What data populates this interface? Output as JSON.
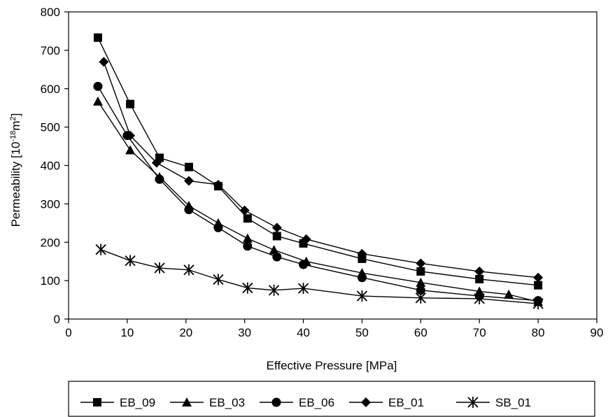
{
  "chart_data": {
    "type": "line",
    "xlabel": "Effective Pressure [MPa]",
    "ylabel_main": "Permeability [10",
    "ylabel_exp1": "-18",
    "ylabel_mid": "m",
    "ylabel_exp2": "2",
    "ylabel_end": "]",
    "xlim": [
      0,
      90
    ],
    "ylim": [
      0,
      800
    ],
    "xticks": [
      0,
      10,
      20,
      30,
      40,
      50,
      60,
      70,
      80,
      90
    ],
    "yticks": [
      0,
      100,
      200,
      300,
      400,
      500,
      600,
      700,
      800
    ],
    "grid": false,
    "legend_position": "bottom",
    "series": [
      {
        "name": "EB_09",
        "marker": "square",
        "x": [
          5,
          10.5,
          15.5,
          20.5,
          25.5,
          30.5,
          35.5,
          40,
          50,
          60,
          70,
          80
        ],
        "y": [
          733,
          560,
          420,
          396,
          346,
          262,
          216,
          197,
          157,
          124,
          104,
          88
        ]
      },
      {
        "name": "EB_03",
        "marker": "triangle",
        "x": [
          5,
          10.5,
          15.5,
          20.5,
          25.5,
          30.5,
          35,
          40.5,
          50,
          60,
          70,
          75,
          80
        ],
        "y": [
          567,
          440,
          370,
          295,
          250,
          210,
          180,
          150,
          120,
          95,
          72,
          64,
          45
        ]
      },
      {
        "name": "EB_06",
        "marker": "circle",
        "x": [
          5,
          10,
          15.5,
          20.5,
          25.5,
          30.5,
          35.5,
          40,
          50,
          60,
          70,
          80
        ],
        "y": [
          606,
          478,
          364,
          285,
          238,
          190,
          162,
          142,
          108,
          75,
          60,
          48
        ]
      },
      {
        "name": "EB_01",
        "marker": "diamond",
        "x": [
          6,
          10.5,
          15,
          20.5,
          25.5,
          30,
          35.5,
          40.5,
          50,
          60,
          70,
          80
        ],
        "y": [
          670,
          478,
          407,
          360,
          350,
          283,
          238,
          208,
          170,
          145,
          124,
          108
        ]
      },
      {
        "name": "SB_01",
        "marker": "asterisk",
        "x": [
          5.5,
          10.5,
          15.5,
          20.5,
          25.5,
          30.5,
          35,
          40,
          50,
          60,
          70,
          80
        ],
        "y": [
          181,
          152,
          133,
          128,
          103,
          81,
          75,
          80,
          60,
          55,
          53,
          40
        ]
      }
    ]
  }
}
